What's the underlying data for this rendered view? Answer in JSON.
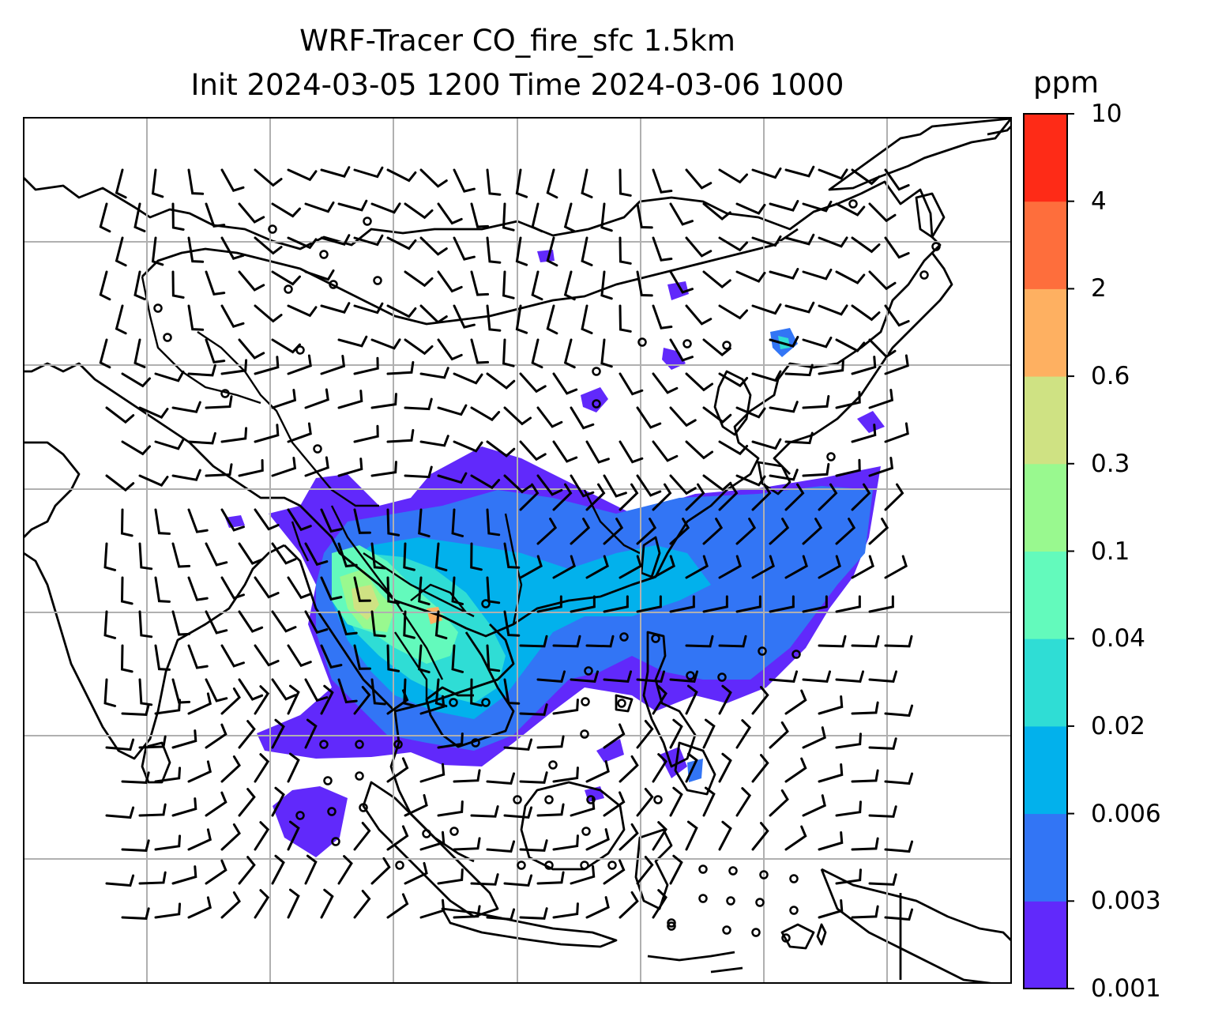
{
  "title": {
    "line1": "WRF-Tracer CO_fire_sfc 1.5km",
    "line2": "Init 2024-03-05 1200 Time 2024-03-06 1000"
  },
  "colorbar": {
    "unit": "ppm",
    "levels": [
      "0.001",
      "0.003",
      "0.006",
      "0.02",
      "0.04",
      "0.1",
      "0.3",
      "0.6",
      "2",
      "4",
      "10"
    ],
    "colors": [
      "#6129fb",
      "#3275f5",
      "#02b1ec",
      "#2fddd5",
      "#63fabc",
      "#99f98f",
      "#cfe283",
      "#feb061",
      "#fe6e3c",
      "#fe2b17"
    ]
  },
  "map": {
    "projection": "lat-lon",
    "gridlines": true,
    "features": [
      "coastlines",
      "country-borders",
      "wind-barbs",
      "co-fire-plume"
    ]
  }
}
